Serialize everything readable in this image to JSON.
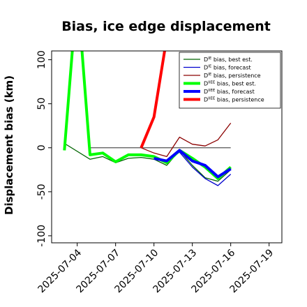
{
  "chart_data": {
    "type": "line",
    "title": "Bias, ice edge displacement",
    "xlabel": "",
    "ylabel": "Displacement bias (km)",
    "xlim": [
      "2025-07-02",
      "2025-07-20"
    ],
    "ylim": [
      -108,
      110
    ],
    "x_ticks": [
      "2025-07-04",
      "2025-07-07",
      "2025-07-10",
      "2025-07-13",
      "2025-07-16",
      "2025-07-19"
    ],
    "x_tick_colors": [
      "#000000",
      "#000000",
      "#2e8b2e",
      "#000000",
      "#000000",
      "#000000"
    ],
    "y_ticks": [
      100,
      50,
      0,
      -50,
      -100
    ],
    "grid": false,
    "legend_position": "top-right",
    "reference_line": {
      "y": 0,
      "x_start": "2025-07-05",
      "x_end": "2025-07-16",
      "color": "#555555"
    },
    "series": [
      {
        "name": "D<sup>IE</sup> bias, best est.",
        "name_plain": "D",
        "sup": "IE",
        "label_rest": " bias, best est.",
        "color": "#006400",
        "width": 1.3,
        "points": [
          [
            "2025-07-03",
            5
          ],
          [
            "2025-07-05",
            -13
          ],
          [
            "2025-07-06",
            -10
          ],
          [
            "2025-07-07",
            -17
          ],
          [
            "2025-07-08",
            -12
          ],
          [
            "2025-07-09",
            -11
          ],
          [
            "2025-07-10",
            -13
          ],
          [
            "2025-07-11",
            -20
          ],
          [
            "2025-07-12",
            -3
          ],
          [
            "2025-07-13",
            -20
          ],
          [
            "2025-07-14",
            -34
          ],
          [
            "2025-07-15",
            -38
          ],
          [
            "2025-07-16",
            -25
          ]
        ]
      },
      {
        "name": "D<sup>IE</sup> bias, forecast",
        "name_plain": "D",
        "sup": "IE",
        "label_rest": " bias, forecast",
        "color": "#0000cd",
        "width": 1.3,
        "points": [
          [
            "2025-07-10",
            -12
          ],
          [
            "2025-07-11",
            -15
          ],
          [
            "2025-07-12",
            -5
          ],
          [
            "2025-07-13",
            -22
          ],
          [
            "2025-07-14",
            -35
          ],
          [
            "2025-07-15",
            -43
          ],
          [
            "2025-07-16",
            -30
          ]
        ]
      },
      {
        "name": "D<sup>IE</sup> bias, persistence",
        "name_plain": "D",
        "sup": "IE",
        "label_rest": " bias, persistence",
        "color": "#8b0000",
        "width": 1.3,
        "points": [
          [
            "2025-07-09",
            0
          ],
          [
            "2025-07-10",
            -6
          ],
          [
            "2025-07-11",
            -10
          ],
          [
            "2025-07-12",
            12
          ],
          [
            "2025-07-13",
            4
          ],
          [
            "2025-07-14",
            2
          ],
          [
            "2025-07-15",
            9
          ],
          [
            "2025-07-16",
            28
          ]
        ]
      },
      {
        "name": "D<sup>IIEE</sup> bias, best est.",
        "name_plain": "D",
        "sup": "IIEE",
        "label_rest": " bias, best est.",
        "color": "#00ff00",
        "width": 4,
        "points": [
          [
            "2025-07-03",
            -3
          ],
          [
            "2025-07-04",
            180
          ],
          [
            "2025-07-05",
            -8
          ],
          [
            "2025-07-06",
            -6
          ],
          [
            "2025-07-07",
            -16
          ],
          [
            "2025-07-08",
            -8
          ],
          [
            "2025-07-09",
            -8
          ],
          [
            "2025-07-10",
            -10
          ],
          [
            "2025-07-11",
            -17
          ],
          [
            "2025-07-12",
            -3
          ],
          [
            "2025-07-13",
            -12
          ],
          [
            "2025-07-14",
            -22
          ],
          [
            "2025-07-15",
            -35
          ],
          [
            "2025-07-16",
            -22
          ]
        ]
      },
      {
        "name": "D<sup>IIEE</sup> bias, forecast",
        "name_plain": "D",
        "sup": "IIEE",
        "label_rest": " bias, forecast",
        "color": "#0000ff",
        "width": 4,
        "points": [
          [
            "2025-07-10",
            -12
          ],
          [
            "2025-07-11",
            -15
          ],
          [
            "2025-07-12",
            -3
          ],
          [
            "2025-07-13",
            -15
          ],
          [
            "2025-07-14",
            -20
          ],
          [
            "2025-07-15",
            -33
          ],
          [
            "2025-07-16",
            -24
          ]
        ]
      },
      {
        "name": "D<sup>IIEE</sup> bias, persistence",
        "name_plain": "D",
        "sup": "IIEE",
        "label_rest": " bias, persistence",
        "color": "#ff0000",
        "width": 4,
        "points": [
          [
            "2025-07-09",
            0
          ],
          [
            "2025-07-10",
            35
          ],
          [
            "2025-07-11",
            125
          ]
        ]
      }
    ]
  }
}
